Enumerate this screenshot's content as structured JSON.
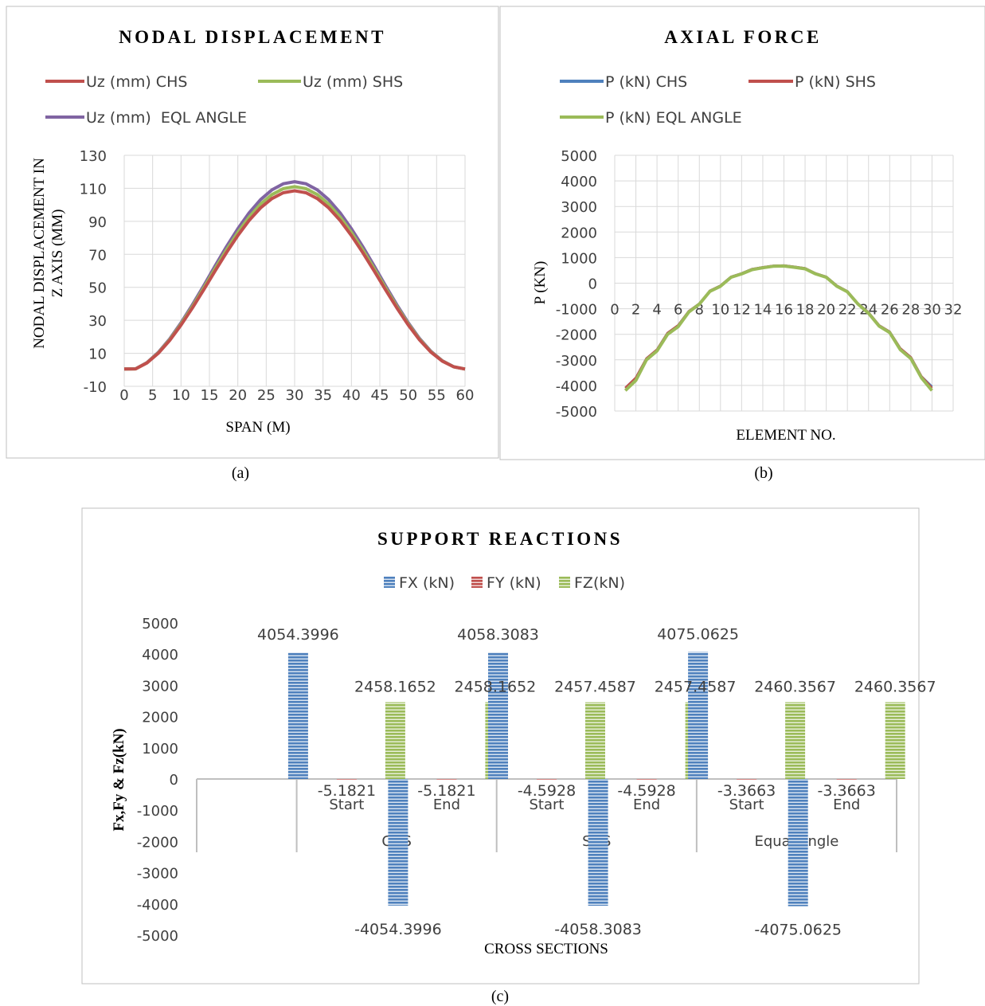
{
  "figures": [
    {
      "caption": "(a)"
    },
    {
      "caption": "(b)"
    },
    {
      "caption": "(c)"
    }
  ],
  "chart_data": [
    {
      "type": "line",
      "title": "NODAL DISPLACEMENT",
      "xlabel": "SPAN (M)",
      "ylabel_lines": [
        "NODAL DISPLACEMENT IN",
        "Z AXIS (MM)"
      ],
      "xlim": [
        0,
        60
      ],
      "ylim": [
        -10,
        130
      ],
      "xticks": [
        0,
        5,
        10,
        15,
        20,
        25,
        30,
        35,
        40,
        45,
        50,
        55,
        60
      ],
      "yticks": [
        -10,
        10,
        30,
        50,
        70,
        90,
        110,
        130
      ],
      "grid": true,
      "legend_position": "top",
      "series": [
        {
          "name": "Uz (mm) CHS",
          "color": "#c0504d",
          "peak": 108.5
        },
        {
          "name": "Uz (mm) SHS",
          "color": "#9bbb59",
          "peak": 111
        },
        {
          "name": "Uz (mm)  EQL ANGLE",
          "color": "#8064a2",
          "peak": 114
        }
      ],
      "x": [
        0,
        2,
        4,
        6,
        8,
        10,
        12,
        14,
        16,
        18,
        20,
        22,
        24,
        26,
        28,
        30,
        32,
        34,
        36,
        38,
        40,
        42,
        44,
        46,
        48,
        50,
        52,
        54,
        56,
        58,
        60
      ]
    },
    {
      "type": "line",
      "title": "AXIAL FORCE",
      "xlabel": "ELEMENT NO.",
      "ylabel": "P (KN)",
      "xlim": [
        0,
        32
      ],
      "ylim": [
        -5000,
        5000
      ],
      "xticks": [
        0,
        2,
        4,
        6,
        8,
        10,
        12,
        14,
        16,
        18,
        20,
        22,
        24,
        26,
        28,
        30,
        32
      ],
      "yticks": [
        -5000,
        -4000,
        -3000,
        -2000,
        -1000,
        0,
        1000,
        2000,
        3000,
        4000,
        5000
      ],
      "grid": true,
      "legend_position": "top",
      "x": [
        1,
        2,
        3,
        4,
        5,
        6,
        7,
        8,
        9,
        10,
        11,
        12,
        13,
        14,
        15,
        16,
        17,
        18,
        19,
        20,
        21,
        22,
        23,
        24,
        25,
        26,
        27,
        28,
        29,
        30
      ],
      "series": [
        {
          "name": "P (kN) CHS",
          "color": "#4f81bd",
          "values": [
            -4100,
            -3700,
            -2950,
            -2600,
            -1950,
            -1650,
            -1100,
            -800,
            -300,
            -100,
            250,
            380,
            550,
            620,
            680,
            690,
            640,
            580,
            380,
            250,
            -100,
            -320,
            -800,
            -1150,
            -1650,
            -1900,
            -2550,
            -2900,
            -3650,
            -4050
          ]
        },
        {
          "name": "P (kN) SHS",
          "color": "#c0504d",
          "values": [
            -4100,
            -3700,
            -2950,
            -2600,
            -1950,
            -1650,
            -1100,
            -800,
            -300,
            -100,
            250,
            380,
            550,
            620,
            680,
            690,
            640,
            580,
            380,
            250,
            -100,
            -320,
            -800,
            -1150,
            -1650,
            -1900,
            -2550,
            -2900,
            -3650,
            -4100
          ]
        },
        {
          "name": "P (kN) EQL ANGLE",
          "color": "#9bbb59",
          "values": [
            -4200,
            -3800,
            -3000,
            -2650,
            -2000,
            -1700,
            -1130,
            -820,
            -320,
            -120,
            230,
            360,
            530,
            600,
            660,
            670,
            620,
            560,
            360,
            230,
            -120,
            -340,
            -820,
            -1180,
            -1680,
            -1930,
            -2600,
            -2950,
            -3700,
            -4200
          ]
        }
      ]
    },
    {
      "type": "bar",
      "title": "SUPPORT REACTIONS",
      "xlabel": "CROSS SECTIONS",
      "ylabel": "Fx,Fy & Fz(kN)",
      "ylim": [
        -5000,
        5000
      ],
      "yticks": [
        -5000,
        -4000,
        -3000,
        -2000,
        -1000,
        0,
        1000,
        2000,
        3000,
        4000,
        5000
      ],
      "grid": false,
      "legend_position": "top",
      "groups": [
        "CHS",
        "SHS",
        "Equal angle"
      ],
      "categories": [
        "Start",
        "End",
        "Start",
        "End",
        "Start",
        "End"
      ],
      "series": [
        {
          "name": "FX (kN)",
          "color": "#4f81bd",
          "values": [
            4054.3996,
            -4054.3996,
            4058.3083,
            -4058.3083,
            4075.0625,
            -4075.0625
          ],
          "labels": [
            "4054.3996",
            "-4054.3996",
            "4058.3083",
            "-4058.3083",
            "4075.0625",
            "-4075.0625"
          ]
        },
        {
          "name": "FY (kN)",
          "color": "#c0504d",
          "values": [
            -5.1821,
            -5.1821,
            -4.5928,
            -4.5928,
            -3.3663,
            -3.3663
          ],
          "labels": [
            "-5.1821",
            "-5.1821",
            "-4.5928",
            "-4.5928",
            "-3.3663",
            "-3.3663"
          ]
        },
        {
          "name": "FZ(kN)",
          "color": "#9bbb59",
          "values": [
            2458.1652,
            2458.1652,
            2457.4587,
            2457.4587,
            2460.3567,
            2460.3567
          ],
          "labels": [
            "2458.1652",
            "2458.1652",
            "2457.4587",
            "2457.4587",
            "2460.3567",
            "2460.3567"
          ]
        }
      ]
    }
  ]
}
